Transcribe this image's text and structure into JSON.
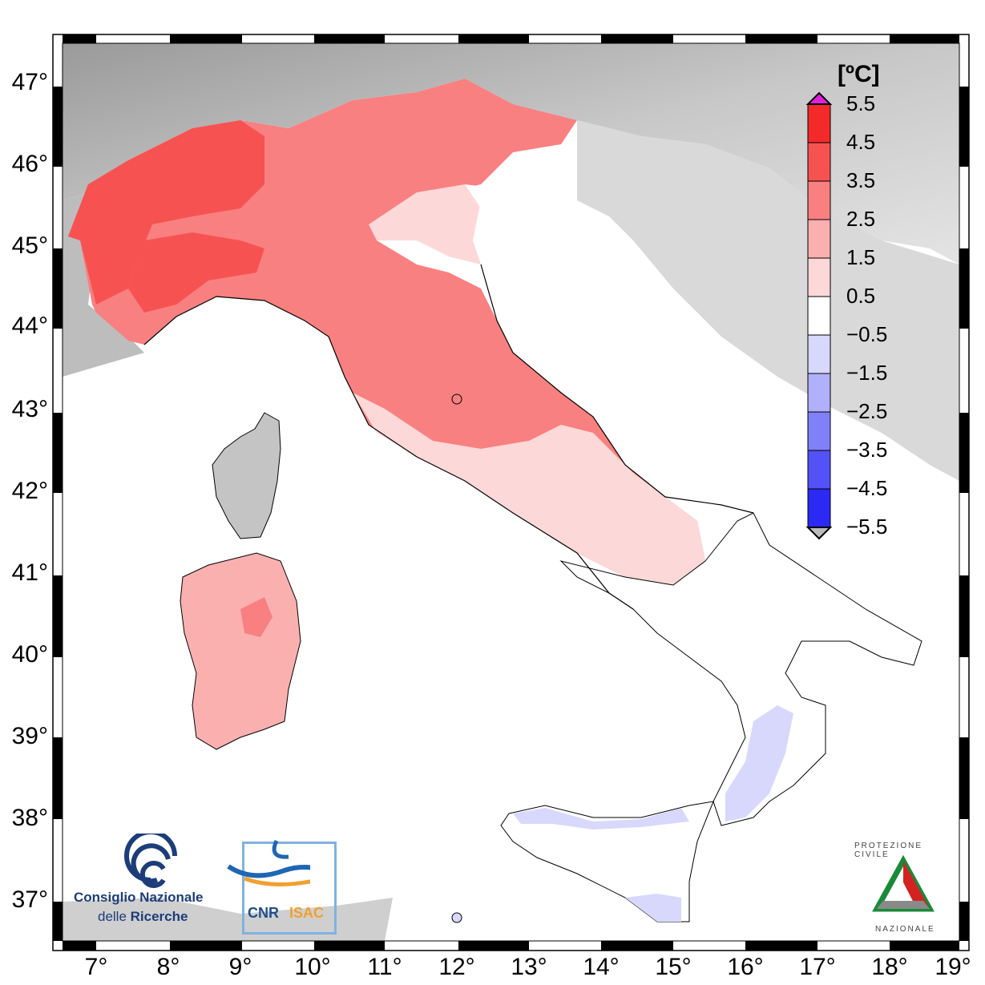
{
  "map": {
    "lat_ticks": [
      "47°",
      "46°",
      "45°",
      "44°",
      "43°",
      "42°",
      "41°",
      "40°",
      "39°",
      "38°",
      "37°"
    ],
    "lon_ticks": [
      "7°",
      "8°",
      "9°",
      "10°",
      "11°",
      "12°",
      "13°",
      "14°",
      "15°",
      "16°",
      "17°",
      "18°",
      "19°"
    ],
    "extent": {
      "lon_min": 6.5,
      "lon_max": 19.0,
      "lat_min": 36.5,
      "lat_max": 47.5
    }
  },
  "colorbar": {
    "unit": "[ºC]",
    "ticks": [
      "5.5",
      "4.5",
      "3.5",
      "2.5",
      "1.5",
      "0.5",
      "−0.5",
      "−1.5",
      "−2.5",
      "−3.5",
      "−4.5",
      "−5.5"
    ],
    "colors": [
      "#f42a2a",
      "#f75252",
      "#f98080",
      "#fbb0b0",
      "#fdd8d8",
      "#ffffff",
      "#d8d8fd",
      "#b0b0fb",
      "#8080f9",
      "#5252f7",
      "#2a2af4"
    ],
    "over_color": "#dd22dd",
    "under_color": "#bbbbbb"
  },
  "logos": {
    "cnr_line1": "Consiglio Nazionale",
    "cnr_line2_a": "delle ",
    "cnr_line2_b": "Ricerche",
    "isac_a": "CNR",
    "isac_b": "ISAC",
    "protezione_top": "PROTEZIONE CIVILE",
    "protezione_bottom": "NAZIONALE"
  }
}
